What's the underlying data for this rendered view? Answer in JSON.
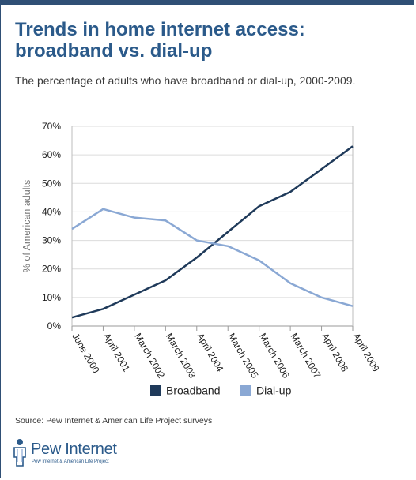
{
  "header": {
    "title": "Trends in home internet access: broadband vs. dial-up",
    "subtitle": "The percentage of adults who have broadband or dial-up, 2000-2009."
  },
  "chart_data": {
    "type": "line",
    "title": "",
    "xlabel": "",
    "ylabel": "% of American adults",
    "ylim": [
      0,
      70
    ],
    "y_ticks": [
      "0%",
      "10%",
      "20%",
      "30%",
      "40%",
      "50%",
      "60%",
      "70%"
    ],
    "grid": true,
    "legend_placement": "bottom",
    "x": [
      "June 2000",
      "April 2001",
      "March 2002",
      "March 2003",
      "April 2004",
      "March 2005",
      "March 2006",
      "March 2007",
      "April 2008",
      "April 2009"
    ],
    "series": [
      {
        "name": "Broadband",
        "color": "#1f3a5a",
        "values": [
          3,
          6,
          11,
          16,
          24,
          33,
          42,
          47,
          55,
          63
        ]
      },
      {
        "name": "Dial-up",
        "color": "#8aa8d4",
        "values": [
          34,
          41,
          38,
          37,
          30,
          28,
          23,
          15,
          10,
          7
        ]
      }
    ]
  },
  "footer": {
    "source": "Source: Pew Internet & American Life Project surveys",
    "logo_word": "Pew Internet",
    "logo_tagline": "Pew Internet & American Life Project"
  }
}
